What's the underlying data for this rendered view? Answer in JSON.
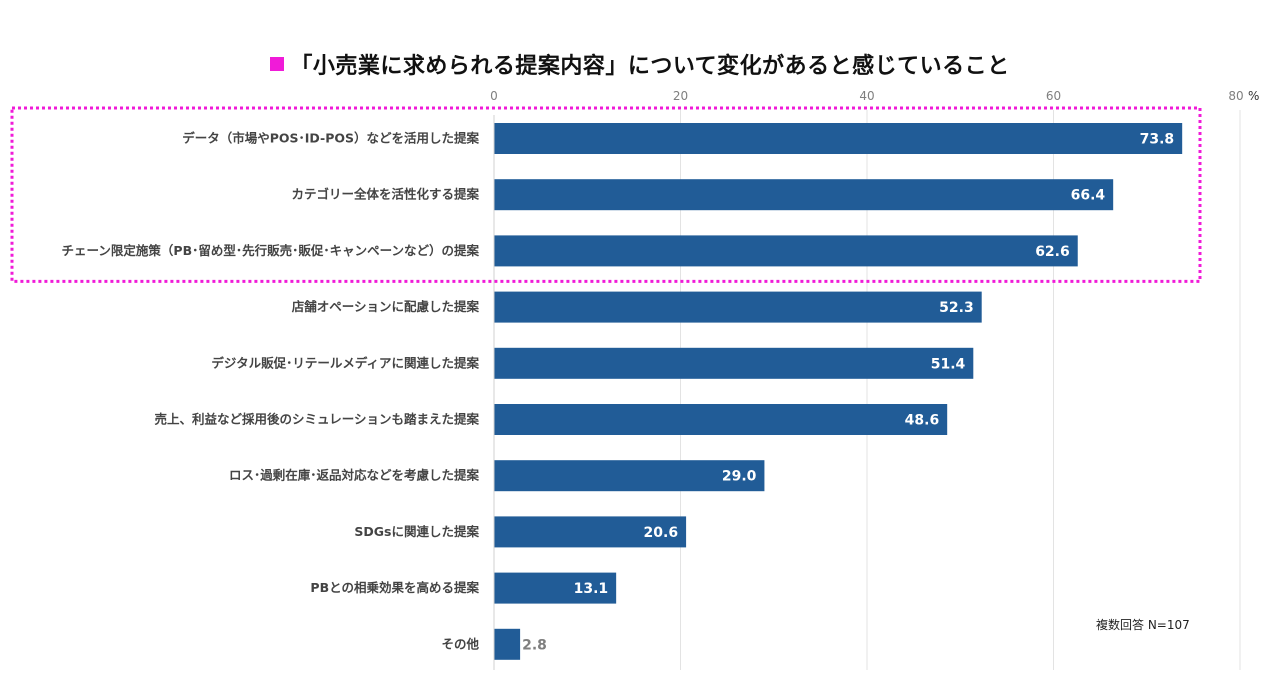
{
  "title": "「小売業に求められる提案内容」について変化があると感じていること",
  "accent_color": "#f01bd8",
  "bar_color": "#215c97",
  "note": "複数回答  N=107",
  "chart_data": {
    "type": "bar",
    "orientation": "horizontal",
    "title": "「小売業に求められる提案内容」について変化があると感じていること",
    "x_ticks": [
      "0",
      "20",
      "40",
      "60",
      "80"
    ],
    "x_unit": "%",
    "xlim": [
      0,
      80
    ],
    "grid": true,
    "highlight_top_n": 3,
    "categories": [
      "データ（市場やPOS･ID-POS）などを活用した提案",
      "カテゴリー全体を活性化する提案",
      "チェーン限定施策（PB･留め型･先行販売･販促･キャンペーンなど）の提案",
      "店舗オペーションに配慮した提案",
      "デジタル販促･リテールメディアに関連した提案",
      "売上、利益など採用後のシミュレーションも踏まえた提案",
      "ロス･過剰在庫･返品対応などを考慮した提案",
      "SDGsに関連した提案",
      "PBとの相乗効果を高める提案",
      "その他"
    ],
    "values": [
      73.8,
      66.4,
      62.6,
      52.3,
      51.4,
      48.6,
      29.0,
      20.6,
      13.1,
      2.8
    ],
    "labels": [
      "73.8",
      "66.4",
      "62.6",
      "52.3",
      "51.4",
      "48.6",
      "29.0",
      "20.6",
      "13.1",
      "2.8"
    ]
  }
}
